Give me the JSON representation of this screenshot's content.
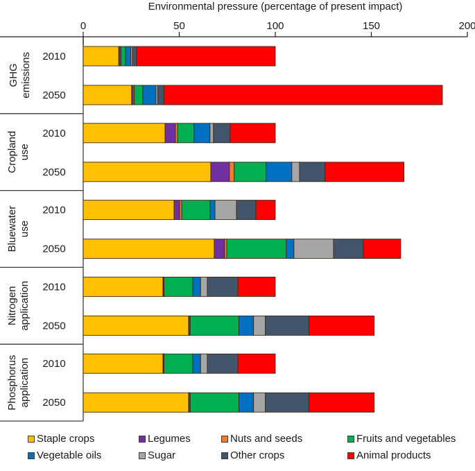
{
  "chart_data": {
    "type": "bar",
    "orientation": "horizontal",
    "stacked": true,
    "title": "",
    "xlabel": "Environmental pressure (percentage of present impact)",
    "ylabel": "",
    "xlim": [
      0,
      200
    ],
    "xticks": [
      0,
      50,
      100,
      150,
      200
    ],
    "x_axis_position": "top",
    "grid": false,
    "legend_position": "bottom",
    "series_names": [
      "Staple crops",
      "Legumes",
      "Nuts and seeds",
      "Fruits and vegetables",
      "Vegetable oils",
      "Sugar",
      "Other crops",
      "Animal products"
    ],
    "colors": {
      "Staple crops": "#FFC000",
      "Legumes": "#7030A0",
      "Nuts and seeds": "#ED7D31",
      "Fruits and vegetables": "#00B050",
      "Vegetable oils": "#0070C0",
      "Sugar": "#A6A6A6",
      "Other crops": "#44546A",
      "Animal products": "#FF0000"
    },
    "groups": [
      {
        "name": "GHG emissions",
        "label_lines": [
          "GHG",
          "emissions"
        ],
        "bars": [
          {
            "year": "2010",
            "values": [
              18.5,
              0.7,
              0.5,
              2.3,
              2.8,
              0.8,
              2.2,
              72.2
            ]
          },
          {
            "year": "2050",
            "values": [
              25.2,
              0.8,
              0.6,
              4.4,
              6.9,
              0.9,
              3.2,
              145.0
            ]
          }
        ]
      },
      {
        "name": "Cropland use",
        "label_lines": [
          "Cropland",
          "use"
        ],
        "bars": [
          {
            "year": "2010",
            "values": [
              42.6,
              5.4,
              1.1,
              8.6,
              8.3,
              1.8,
              8.7,
              23.5
            ]
          },
          {
            "year": "2050",
            "values": [
              66.4,
              9.7,
              2.5,
              16.6,
              13.4,
              4.0,
              13.3,
              41.1
            ]
          }
        ]
      },
      {
        "name": "Bluewater use",
        "label_lines": [
          "Bluewater",
          "use"
        ],
        "bars": [
          {
            "year": "2010",
            "values": [
              47.3,
              2.9,
              1.1,
              14.8,
              2.5,
              11.2,
              10.1,
              10.1
            ]
          },
          {
            "year": "2050",
            "values": [
              68.2,
              5.4,
              1.1,
              31.0,
              4.0,
              20.6,
              15.5,
              19.5
            ]
          }
        ]
      },
      {
        "name": "Nitrogen application",
        "label_lines": [
          "Nitrogen",
          "application"
        ],
        "bars": [
          {
            "year": "2010",
            "values": [
              41.5,
              0.3,
              0.3,
              14.9,
              4.1,
              3.5,
              15.9,
              19.5
            ]
          },
          {
            "year": "2050",
            "values": [
              54.9,
              0.4,
              0.4,
              25.4,
              7.6,
              6.1,
              22.7,
              34.0
            ]
          }
        ]
      },
      {
        "name": "Phosphorus application",
        "label_lines": [
          "Phosphorus",
          "application"
        ],
        "bars": [
          {
            "year": "2010",
            "values": [
              41.5,
              0.3,
              0.3,
              14.9,
              4.1,
              3.5,
              15.9,
              19.5
            ]
          },
          {
            "year": "2050",
            "values": [
              54.9,
              0.4,
              0.4,
              25.4,
              7.6,
              6.1,
              22.7,
              34.0
            ]
          }
        ]
      }
    ]
  },
  "legend": {
    "items": [
      {
        "label": "Staple crops",
        "color": "#FFC000"
      },
      {
        "label": "Legumes",
        "color": "#7030A0"
      },
      {
        "label": "Nuts and seeds",
        "color": "#ED7D31"
      },
      {
        "label": "Fruits and vegetables",
        "color": "#00B050"
      },
      {
        "label": "Vegetable oils",
        "color": "#0070C0"
      },
      {
        "label": "Sugar",
        "color": "#A6A6A6"
      },
      {
        "label": "Other crops",
        "color": "#44546A"
      },
      {
        "label": "Animal products",
        "color": "#FF0000"
      }
    ]
  }
}
